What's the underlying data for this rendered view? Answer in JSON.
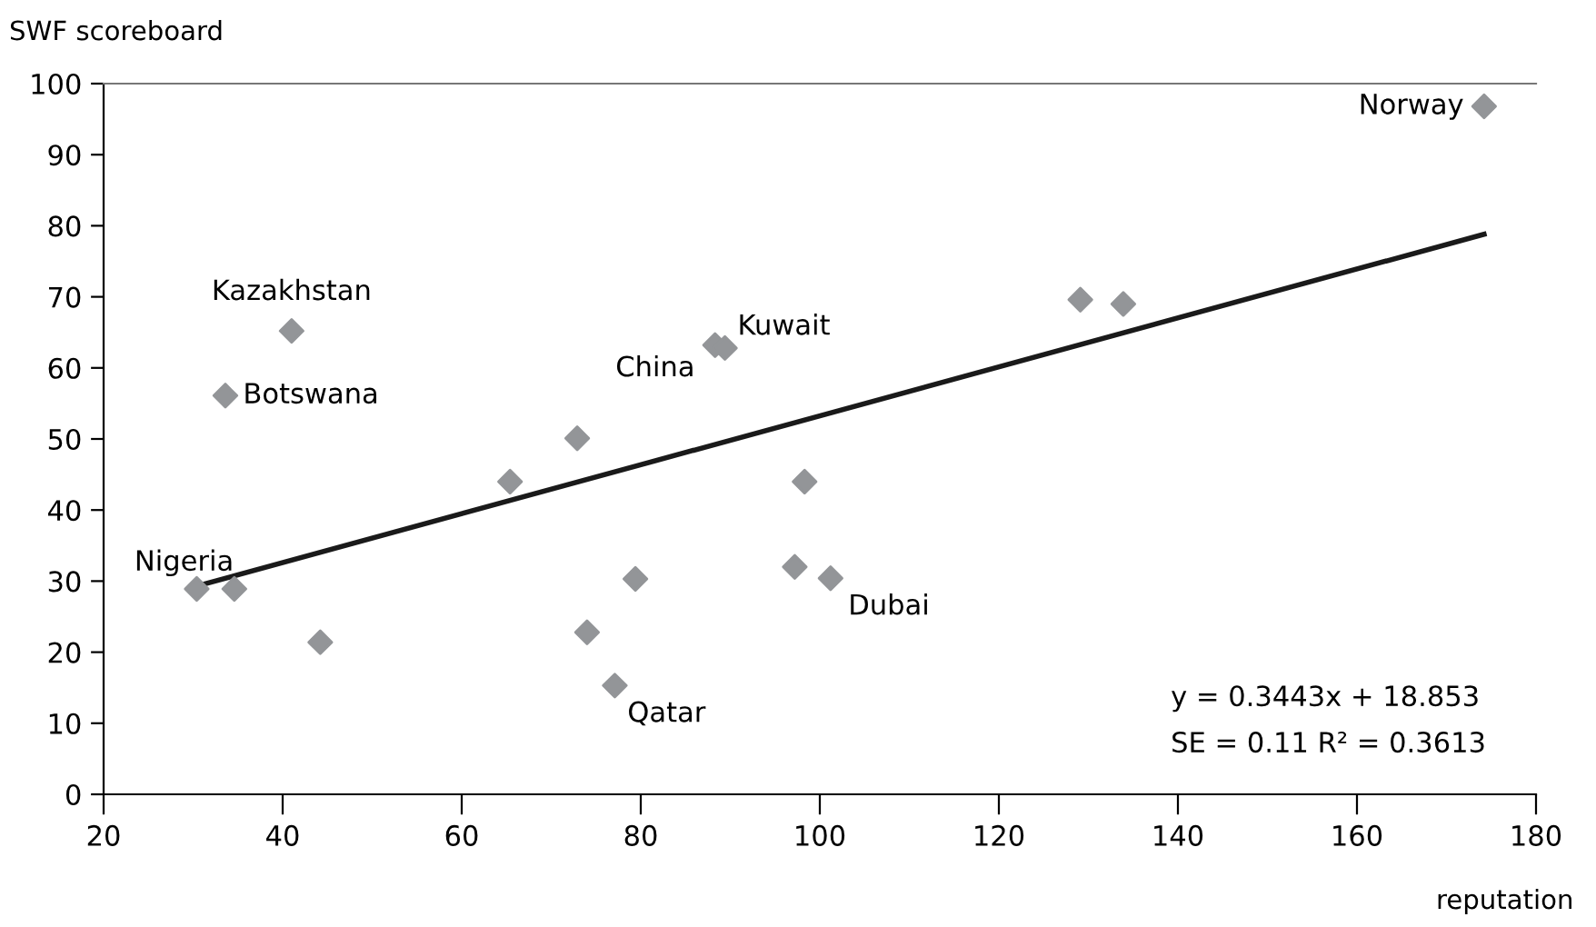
{
  "chart_data": {
    "type": "scatter",
    "ylabel": "SWF scoreboard",
    "xlabel": "reputation",
    "series": [
      {
        "color": "#939598",
        "marker": "diamond",
        "x": [
          174.2,
          129.1,
          133.9,
          41,
          33.6,
          88.3,
          89.4,
          72.9,
          65.4,
          30.4,
          34.6,
          44.2,
          79.4,
          74,
          77.1,
          98.3,
          97.2,
          101.2
        ],
        "values": [
          96.8,
          69.6,
          69,
          65.2,
          56.1,
          63.2,
          62.8,
          50.1,
          44,
          28.9,
          28.9,
          21.4,
          30.3,
          22.8,
          15.3,
          44,
          32,
          30.4
        ]
      },
      {
        "type": "line",
        "color": "#1a1a1a",
        "marker": "none",
        "x": [
          30.4,
          174.2
        ],
        "values": [
          29.3,
          78.8
        ]
      }
    ],
    "xlim": [
      20,
      180
    ],
    "xticks": [
      20,
      40,
      60,
      80,
      100,
      120,
      140,
      160,
      180
    ],
    "ylim": [
      0,
      100
    ],
    "yticks": [
      0,
      10,
      20,
      30,
      40,
      50,
      60,
      70,
      80,
      90,
      100
    ],
    "grid": false,
    "legend": false,
    "annotations": [
      {
        "text": "Norway",
        "x": 174.2,
        "y": 96.8
      },
      {
        "text": "Kazakhstan",
        "x": 41,
        "y": 65.2
      },
      {
        "text": "Botswana",
        "x": 33.6,
        "y": 56.1
      },
      {
        "text": "China",
        "x": 88.3,
        "y": 63.2
      },
      {
        "text": "Kuwait",
        "x": 89.4,
        "y": 62.8
      },
      {
        "text": "Nigeria",
        "x": 30.4,
        "y": 28.9
      },
      {
        "text": "Qatar",
        "x": 77.1,
        "y": 15.3
      },
      {
        "text": "Dubai",
        "x": 101.2,
        "y": 30.4
      },
      "y = 0.3443x + 18.853",
      "SE = 0.11 R² = 0.3613"
    ]
  }
}
